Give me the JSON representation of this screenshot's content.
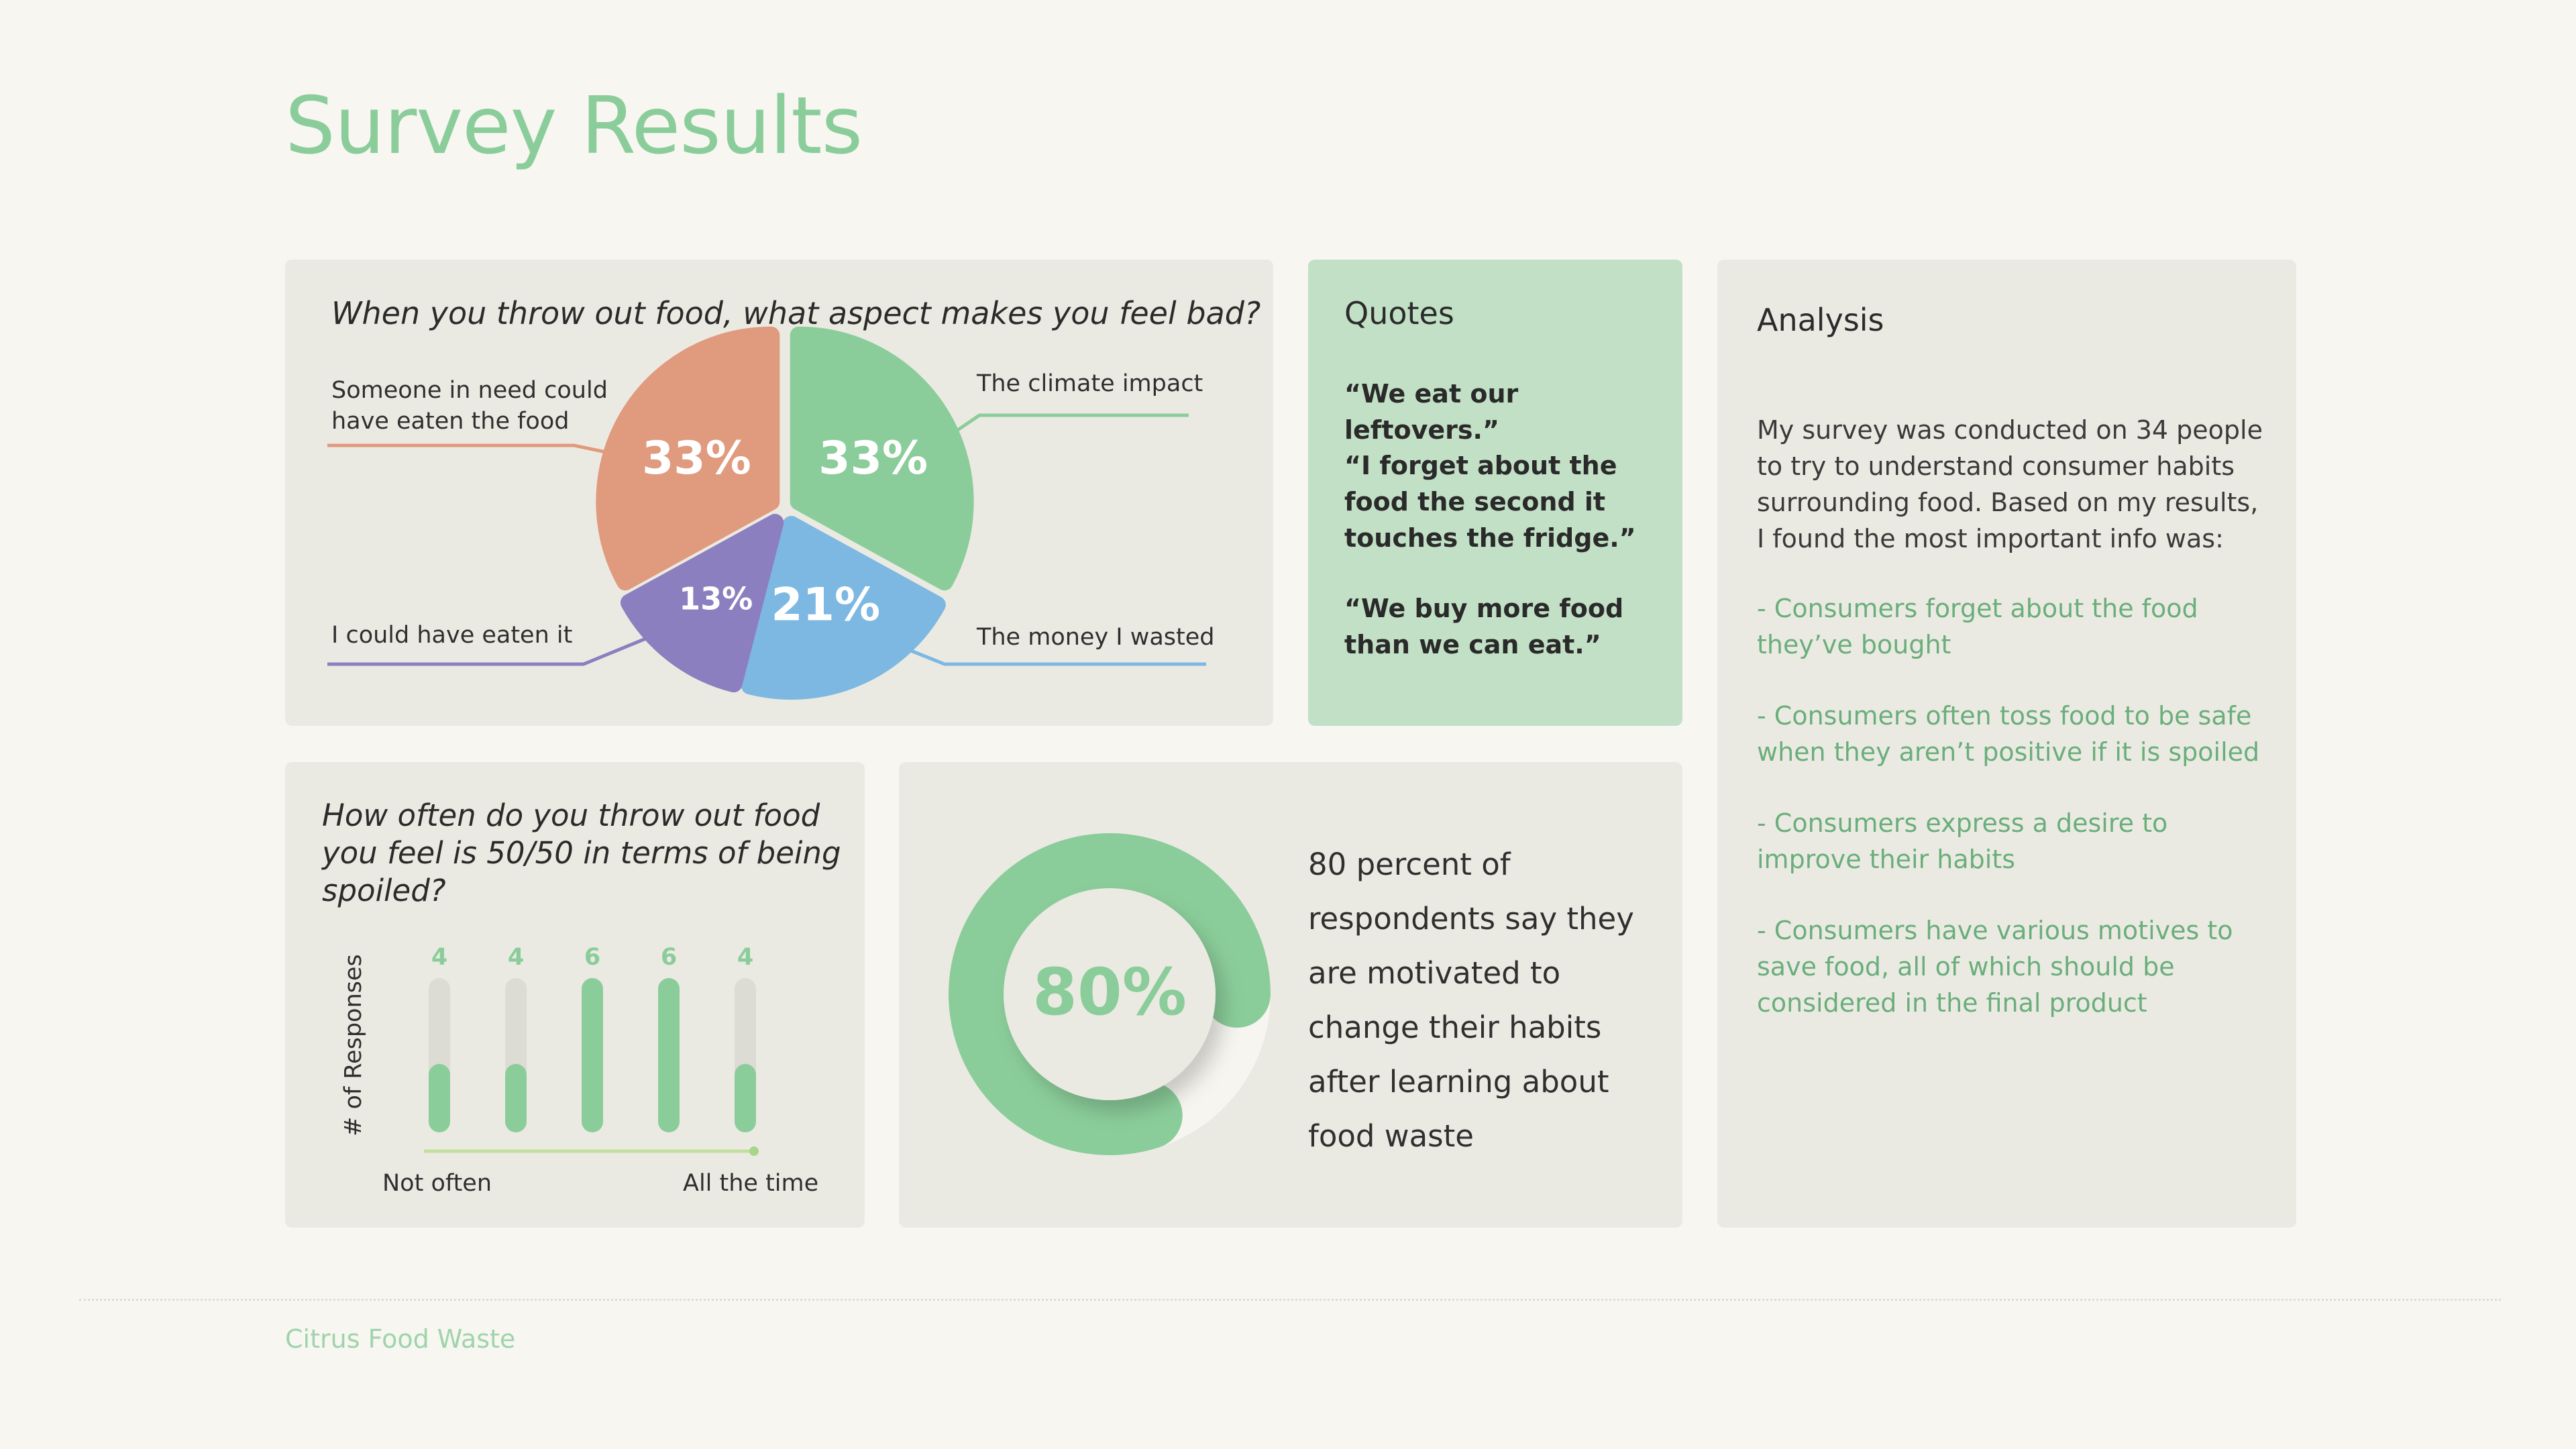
{
  "page": {
    "title": "Survey Results",
    "footer": "Citrus Food Waste"
  },
  "colors": {
    "accent_green": "#8bcd9a",
    "salmon": "#e09a7e",
    "blue": "#7db8e2",
    "purple": "#8b7fc0",
    "card_bg": "#ebeae2",
    "quotes_bg": "#c2e0c6"
  },
  "pie_card": {
    "question": "When you throw out food, what aspect makes you feel bad?"
  },
  "quotes": {
    "title": "Quotes",
    "items": [
      "“We eat our leftovers.”",
      "“I forget about the food the second it touches the fridge.”",
      "“We buy more food than we can eat.”"
    ]
  },
  "analysis": {
    "title": "Analysis",
    "intro": "My survey was conducted on 34 people to try to understand consumer habits surrounding food. Based on my results, I found the most important info was:",
    "points": [
      "- Consumers forget about the food they’ve bought",
      "- Consumers often toss food to be safe when they aren’t positive if it is spoiled",
      "- Consumers express a desire to improve their habits",
      "- Consumers have various motives to save food, all of which should be considered in the final product"
    ]
  },
  "bars_card": {
    "question": "How often do you throw out food you feel is 50/50 in terms of being spoiled?"
  },
  "donut_card": {
    "text": "80 percent of respondents say they are motivated to change their habits after learning about food waste"
  },
  "chart_data": [
    {
      "type": "pie",
      "slices": [
        {
          "label": "Someone in need could have eaten the food",
          "value": 33,
          "display": "33%",
          "color": "#e09a7e"
        },
        {
          "label": "The climate impact",
          "value": 33,
          "display": "33%",
          "color": "#8bcd9a"
        },
        {
          "label": "The money I wasted",
          "value": 21,
          "display": "21%",
          "color": "#7db8e2"
        },
        {
          "label": "I could have eaten it",
          "value": 13,
          "display": "13%",
          "color": "#8b7fc0"
        }
      ]
    },
    {
      "type": "bar",
      "categories": [
        "",
        "",
        "",
        "",
        ""
      ],
      "values": [
        4,
        4,
        6,
        6,
        4
      ],
      "value_labels": [
        "4",
        "4",
        "6",
        "6",
        "4"
      ],
      "ylabel": "# of Responses",
      "x_start_label": "Not often",
      "x_end_label": "All the time",
      "ylim": [
        0,
        6
      ]
    },
    {
      "type": "pie",
      "variant": "donut-gauge",
      "value": 80,
      "display": "80%"
    }
  ]
}
